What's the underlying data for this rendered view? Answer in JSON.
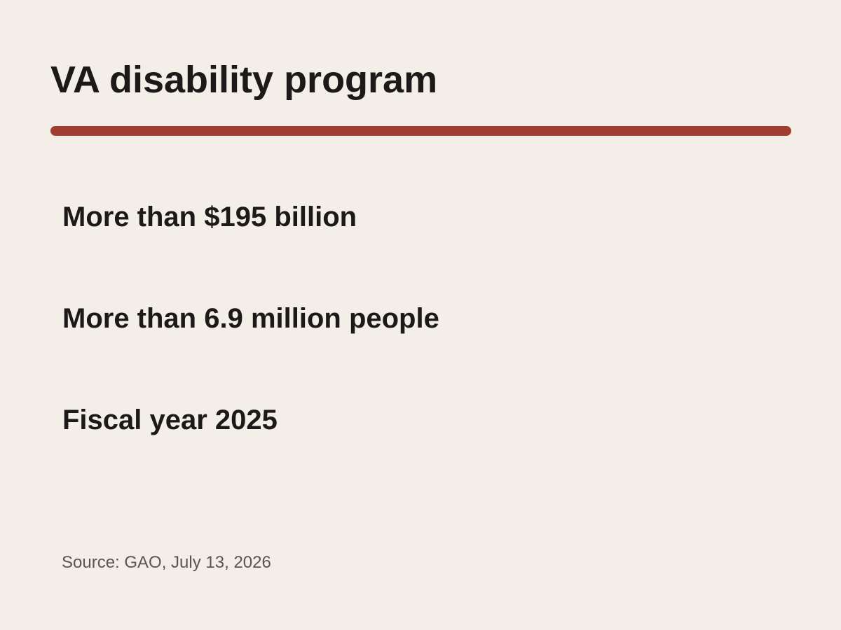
{
  "title": "VA disability program",
  "colors": {
    "background": "#f3eee8",
    "accent_rule": "#a03c30",
    "text": "#1c1a18",
    "source_text": "#5a5550"
  },
  "facts": [
    "More than $195 billion",
    "More than 6.9 million people",
    "Fiscal year 2025"
  ],
  "source": "Source: GAO, July 13, 2026"
}
